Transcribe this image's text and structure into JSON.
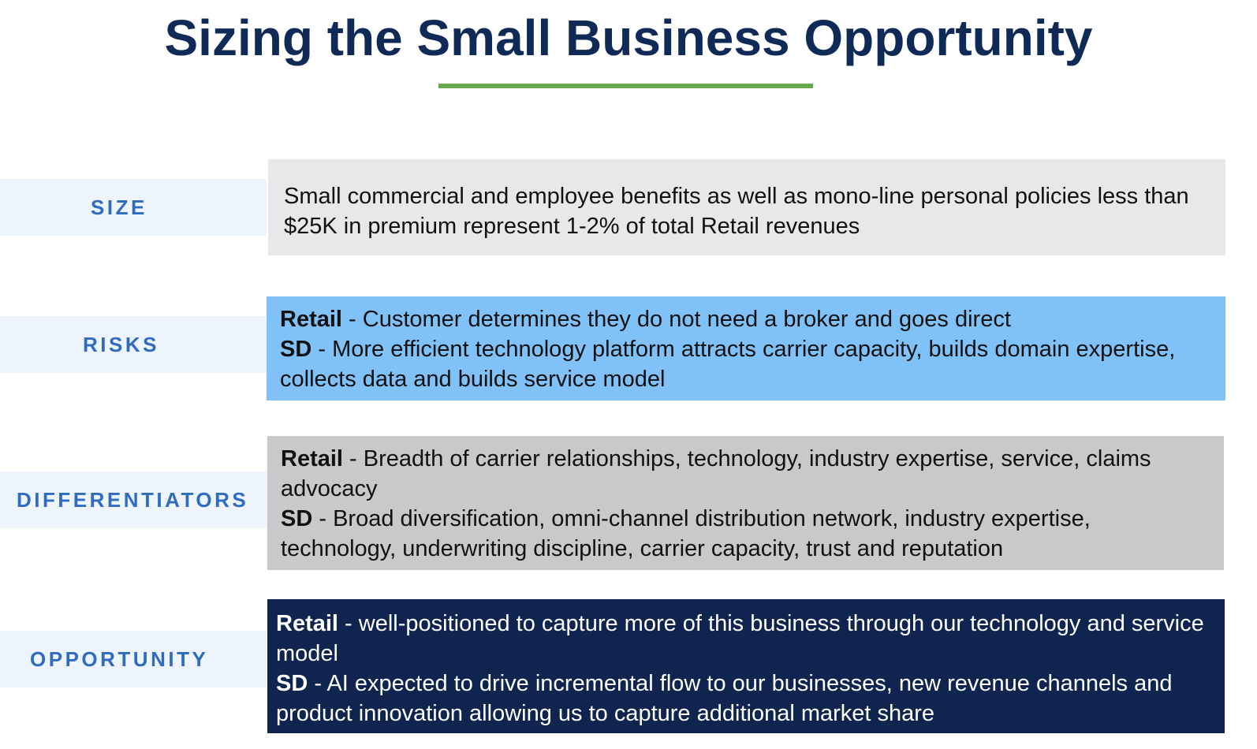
{
  "title": "Sizing the Small Business Opportunity",
  "colors": {
    "title": "#0f2a57",
    "underline": "#6aa84f",
    "label_text": "#2f6cc0",
    "label_band": "#eef4fb",
    "size_box": "#e8e8ea",
    "risks_box": "#80c2f8",
    "differentiators_box": "#c9c9cb",
    "opportunity_box": "#0f2550"
  },
  "rows": {
    "size": {
      "label": "SIZE",
      "text": "Small commercial and employee benefits as well as mono-line personal policies less than $25K in premium represent 1-2% of total Retail revenues"
    },
    "risks": {
      "label": "RISKS",
      "retail_label": "Retail",
      "retail_text": " - Customer determines they do not need a broker and goes direct",
      "sd_label": "SD",
      "sd_text": " - More efficient technology platform attracts carrier capacity, builds domain expertise, collects data and builds service model"
    },
    "differentiators": {
      "label": "DIFFERENTIATORS",
      "retail_label": "Retail",
      "retail_text": " - Breadth of carrier relationships, technology, industry expertise, service, claims advocacy",
      "sd_label": "SD",
      "sd_text": " - Broad diversification, omni-channel distribution network, industry expertise, technology, underwriting discipline, carrier capacity, trust and reputation"
    },
    "opportunity": {
      "label": "OPPORTUNITY",
      "retail_label": "Retail",
      "retail_text": " - well-positioned to capture more of this business through our technology and service model",
      "sd_label": "SD",
      "sd_text": " - AI expected to drive incremental flow to our businesses, new revenue channels and product innovation allowing us to capture additional market share"
    }
  }
}
